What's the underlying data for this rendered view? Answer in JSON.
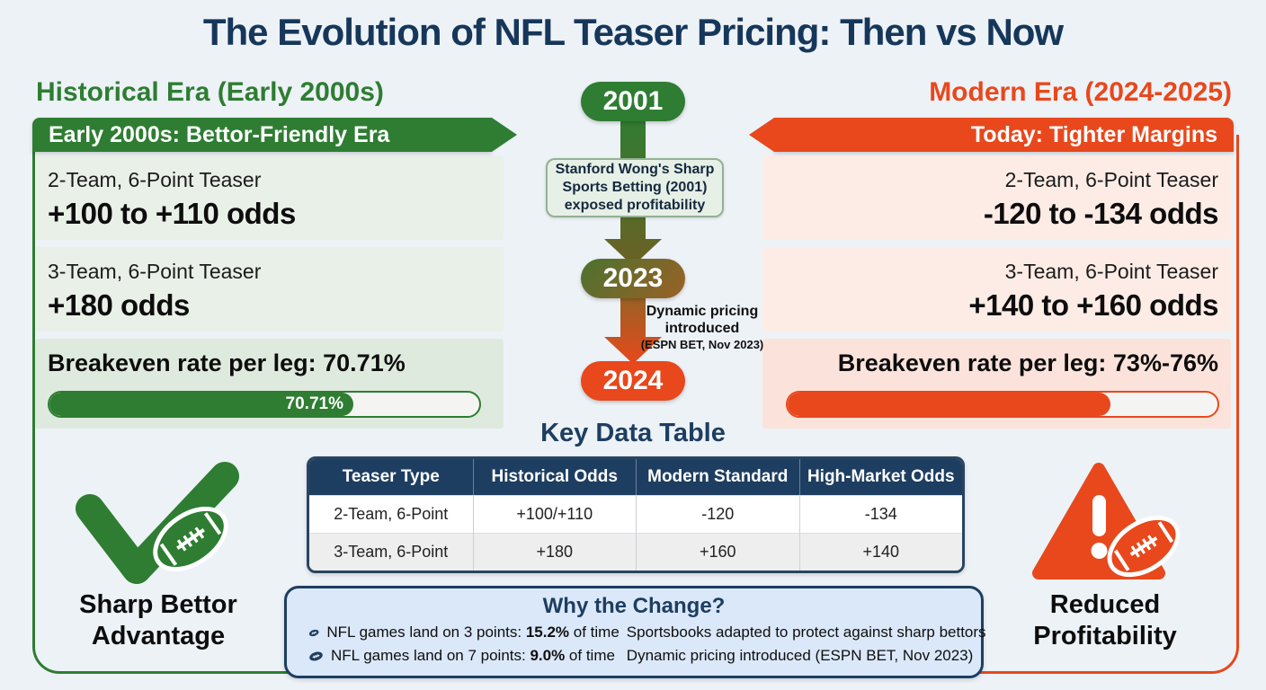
{
  "title": "The Evolution of NFL Teaser Pricing: Then vs Now",
  "historical": {
    "heading": "Historical Era (Early 2000s)",
    "banner": "Early 2000s: Bettor-Friendly Era",
    "teasers": [
      {
        "label": "2-Team, 6-Point Teaser",
        "odds": "+100 to +110 odds"
      },
      {
        "label": "3-Team, 6-Point Teaser",
        "odds": "+180 odds"
      }
    ],
    "breakeven": {
      "label": "Breakeven rate per leg: 70.71%",
      "percent": 70.71,
      "bar_text": "70.71%"
    },
    "badge_line1": "Sharp Bettor",
    "badge_line2": "Advantage"
  },
  "modern": {
    "heading": "Modern Era (2024-2025)",
    "banner": "Today: Tighter Margins",
    "teasers": [
      {
        "label": "2-Team, 6-Point Teaser",
        "odds": "-120 to -134 odds"
      },
      {
        "label": "3-Team, 6-Point Teaser",
        "odds": "+140 to +160 odds"
      }
    ],
    "breakeven": {
      "label": "Breakeven rate per leg: 73%-76%",
      "percent": 75,
      "bar_text": ""
    },
    "badge_line1": "Reduced",
    "badge_line2": "Profitability"
  },
  "timeline": {
    "year_start": "2001",
    "year_mid": "2023",
    "year_end": "2024",
    "event1_lines": [
      "Stanford Wong's Sharp",
      "Sports Betting (2001)",
      "exposed profitability"
    ],
    "event2_main": "Dynamic pricing introduced",
    "event2_sub": "(ESPN BET, Nov 2023)"
  },
  "table": {
    "title": "Key Data Table",
    "headers": [
      "Teaser Type",
      "Historical Odds",
      "Modern Standard",
      "High-Market Odds"
    ],
    "rows": [
      [
        "2-Team, 6-Point",
        "+100/+110",
        "-120",
        "-134"
      ],
      [
        "3-Team, 6-Point",
        "+180",
        "+160",
        "+140"
      ]
    ]
  },
  "why": {
    "title": "Why the Change?",
    "bullets": [
      {
        "pre": "NFL games land on 3 points: ",
        "bold": "15.2%",
        "post": " of time"
      },
      {
        "pre": "NFL games land on 7 points: ",
        "bold": "9.0%",
        "post": " of time"
      },
      {
        "pre": "Sportsbooks adapted to protect against sharp bettors",
        "bold": "",
        "post": ""
      },
      {
        "pre": "Dynamic pricing introduced (ESPN BET, Nov 2023)",
        "bold": "",
        "post": ""
      }
    ]
  },
  "colors": {
    "historical_green": "#2e7d32",
    "modern_orange": "#e8481c",
    "navy": "#1d3e61",
    "page_background": "#edf2f7"
  }
}
